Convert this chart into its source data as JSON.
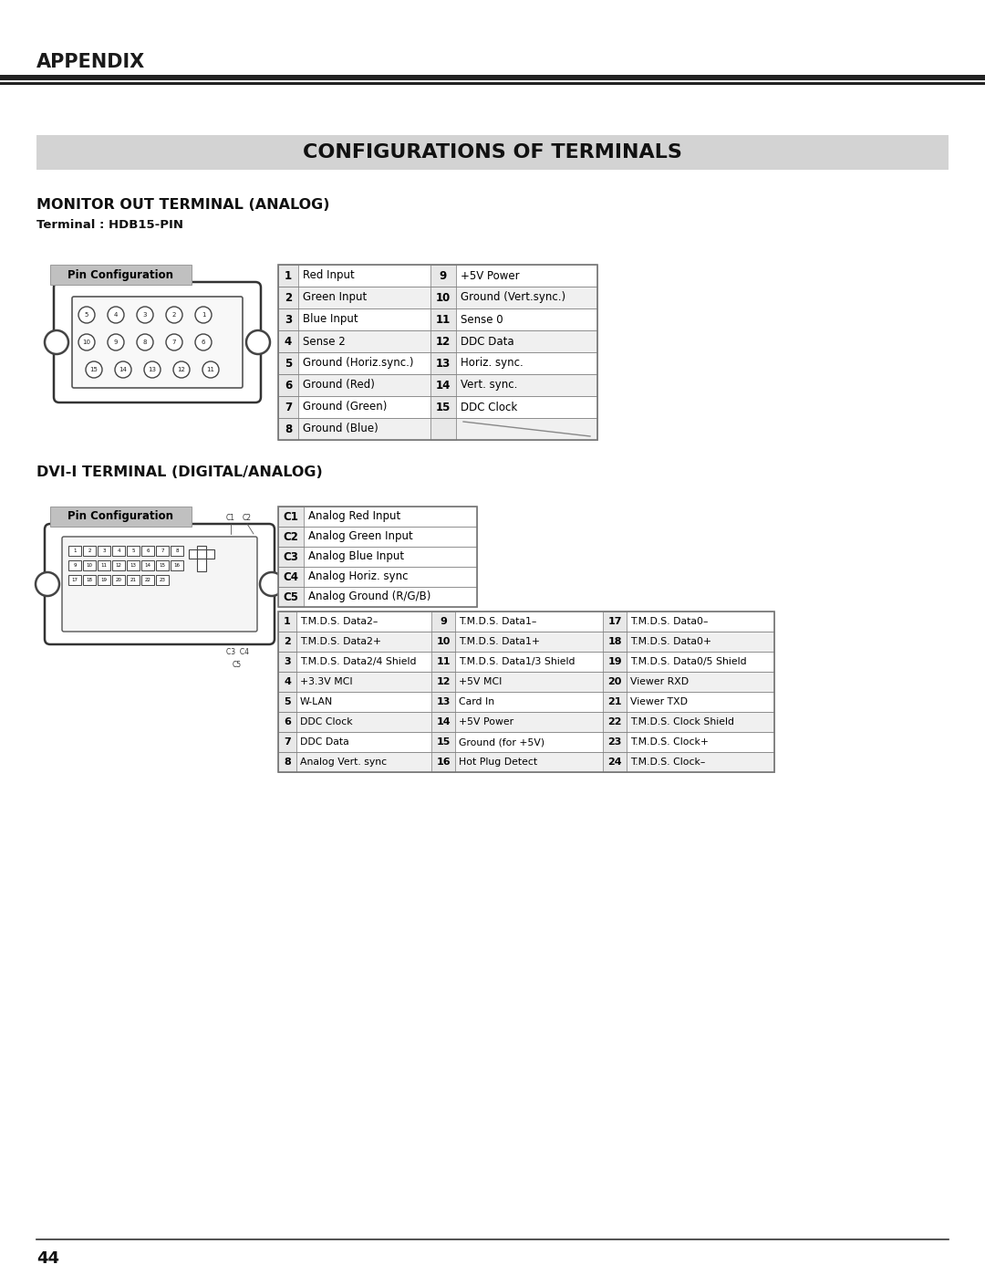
{
  "page_bg": "#ffffff",
  "header_text": "APPENDIX",
  "section_title": "CONFIGURATIONS OF TERMINALS",
  "section_bg": "#d3d3d3",
  "monitor_title": "MONITOR OUT TERMINAL (ANALOG)",
  "monitor_subtitle": "Terminal : HDB15-PIN",
  "pin_config_label": "Pin Configuration",
  "pin_config_bg": "#c0c0c0",
  "monitor_table": [
    [
      "1",
      "Red Input",
      "9",
      "+5V Power"
    ],
    [
      "2",
      "Green Input",
      "10",
      "Ground (Vert.sync.)"
    ],
    [
      "3",
      "Blue Input",
      "11",
      "Sense 0"
    ],
    [
      "4",
      "Sense 2",
      "12",
      "DDC Data"
    ],
    [
      "5",
      "Ground (Horiz.sync.)",
      "13",
      "Horiz. sync."
    ],
    [
      "6",
      "Ground (Red)",
      "14",
      "Vert. sync."
    ],
    [
      "7",
      "Ground (Green)",
      "15",
      "DDC Clock"
    ],
    [
      "8",
      "Ground (Blue)",
      "",
      ""
    ]
  ],
  "dvi_title": "DVI-I TERMINAL (DIGITAL/ANALOG)",
  "dvi_c_table": [
    [
      "C1",
      "Analog Red Input"
    ],
    [
      "C2",
      "Analog Green Input"
    ],
    [
      "C3",
      "Analog Blue Input"
    ],
    [
      "C4",
      "Analog Horiz. sync"
    ],
    [
      "C5",
      "Analog Ground (R/G/B)"
    ]
  ],
  "dvi_table": [
    [
      "1",
      "T.M.D.S. Data2–",
      "9",
      "T.M.D.S. Data1–",
      "17",
      "T.M.D.S. Data0–"
    ],
    [
      "2",
      "T.M.D.S. Data2+",
      "10",
      "T.M.D.S. Data1+",
      "18",
      "T.M.D.S. Data0+"
    ],
    [
      "3",
      "T.M.D.S. Data2/4 Shield",
      "11",
      "T.M.D.S. Data1/3 Shield",
      "19",
      "T.M.D.S. Data0/5 Shield"
    ],
    [
      "4",
      "+3.3V MCI",
      "12",
      "+5V MCI",
      "20",
      "Viewer RXD"
    ],
    [
      "5",
      "W-LAN",
      "13",
      "Card In",
      "21",
      "Viewer TXD"
    ],
    [
      "6",
      "DDC Clock",
      "14",
      "+5V Power",
      "22",
      "T.M.D.S. Clock Shield"
    ],
    [
      "7",
      "DDC Data",
      "15",
      "Ground (for +5V)",
      "23",
      "T.M.D.S. Clock+"
    ],
    [
      "8",
      "Analog Vert. sync",
      "16",
      "Hot Plug Detect",
      "24",
      "T.M.D.S. Clock–"
    ]
  ],
  "footer_number": "44",
  "table_border": "#777777",
  "row_bg_even": "#ffffff",
  "row_bg_odd": "#f0f0f0",
  "num_col_bg": "#e8e8e8"
}
